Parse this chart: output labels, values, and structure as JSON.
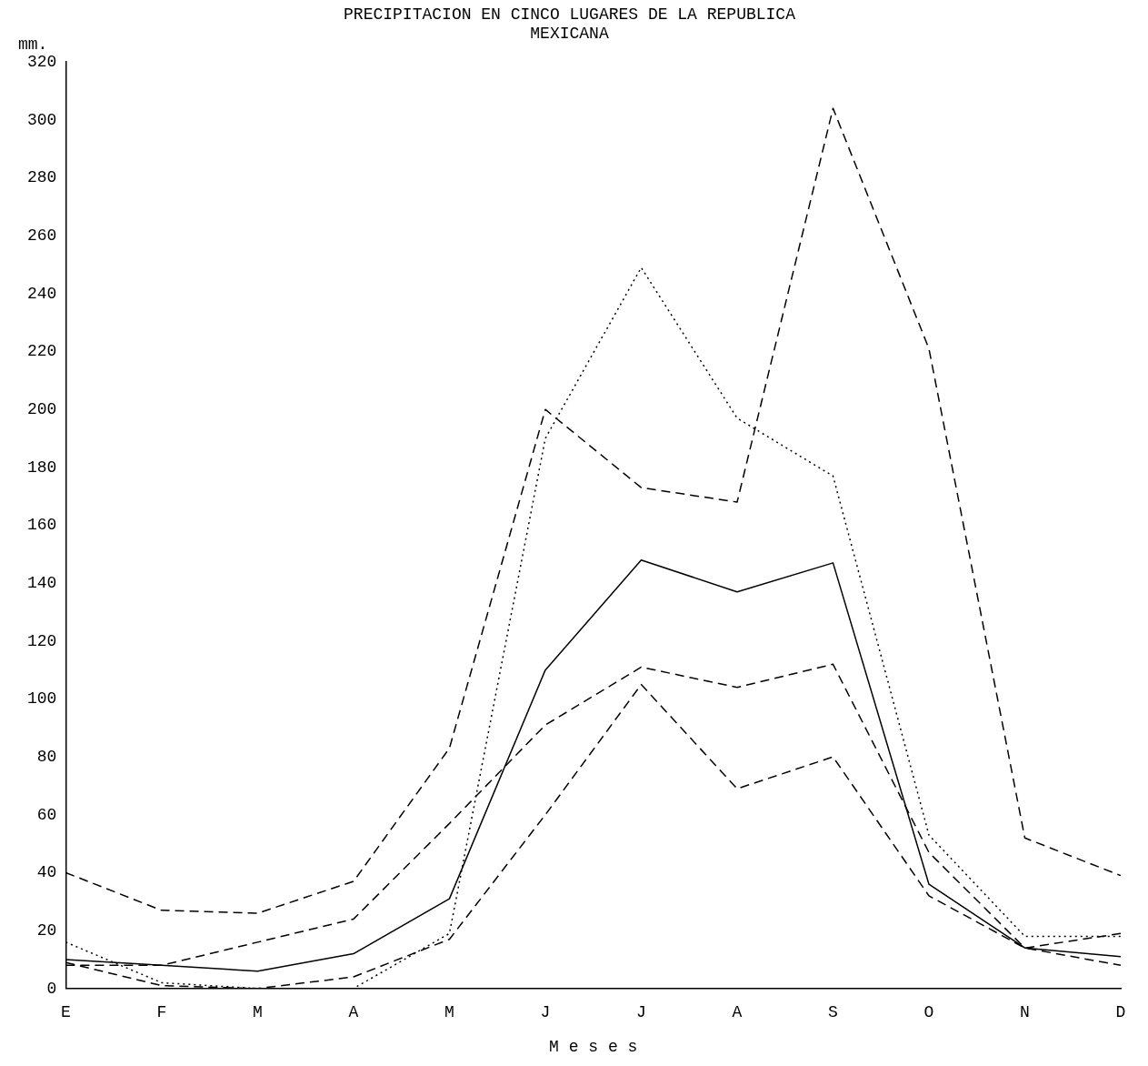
{
  "chart_data": {
    "type": "line",
    "title": [
      "PRECIPITACION EN CINCO LUGARES DE LA REPUBLICA",
      "MEXICANA"
    ],
    "ylabel": "mm.",
    "xlabel": "M e s e s",
    "categories": [
      "E",
      "F",
      "M",
      "A",
      "M",
      "J",
      "J",
      "A",
      "S",
      "O",
      "N",
      "D"
    ],
    "series": [
      {
        "color": "#000000",
        "line_style": "dashed",
        "values": [
          40,
          27,
          26,
          37,
          83,
          200,
          173,
          168,
          304,
          221,
          52,
          39
        ]
      },
      {
        "color": "#000000",
        "line_style": "dotted",
        "values": [
          16,
          2,
          0,
          0,
          19,
          190,
          249,
          197,
          177,
          53,
          18,
          18
        ]
      },
      {
        "color": "#000000",
        "line_style": "solid",
        "values": [
          10,
          8,
          6,
          12,
          31,
          110,
          148,
          137,
          147,
          36,
          14,
          11
        ]
      },
      {
        "color": "#000000",
        "line_style": "dashed",
        "values": [
          8,
          8,
          16,
          24,
          57,
          91,
          111,
          104,
          112,
          47,
          14,
          19
        ]
      },
      {
        "color": "#000000",
        "line_style": "dashed",
        "values": [
          9,
          1,
          0,
          4,
          17,
          60,
          105,
          69,
          80,
          32,
          14,
          8
        ]
      }
    ],
    "ylim": [
      0,
      320
    ],
    "yticks": [
      0,
      20,
      40,
      60,
      80,
      100,
      120,
      140,
      160,
      180,
      200,
      220,
      240,
      260,
      280,
      300,
      320
    ],
    "grid": false,
    "legend": false
  }
}
